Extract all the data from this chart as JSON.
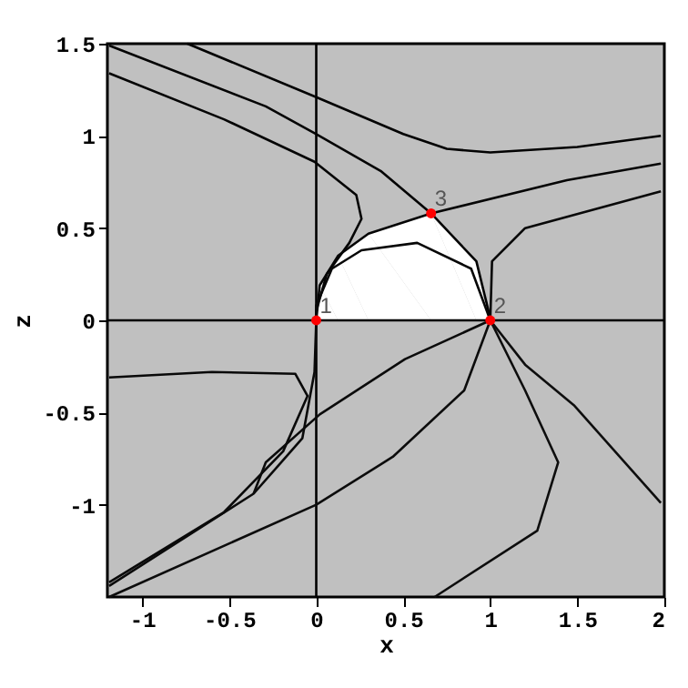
{
  "chart_data": {
    "type": "line",
    "xlabel": "x",
    "ylabel": "z",
    "xlim": [
      -1.2,
      2
    ],
    "ylim": [
      -1.5,
      1.5
    ],
    "xticks": [
      -1,
      -0.5,
      0,
      0.5,
      1,
      1.5,
      2
    ],
    "yticks": [
      -1,
      -0.5,
      0,
      0.5,
      1,
      1.5
    ],
    "grid": false,
    "line_style": "solid",
    "marker": "none",
    "series": [
      {
        "type": "area",
        "color": "#ffffff",
        "x": [
          0,
          0.02,
          0.125,
          0.3,
          0.66,
          0.92,
          0.99,
          1
        ],
        "values": [
          0,
          0.19,
          0.35,
          0.47,
          0.58,
          0.32,
          0.05,
          0
        ]
      },
      {
        "color": "#000000",
        "x": [
          -1.2,
          2
        ],
        "values": [
          0,
          0
        ]
      },
      {
        "color": "#010101",
        "x": [
          0,
          0
        ],
        "values": [
          1.5,
          -1.5
        ]
      },
      {
        "color": "#020202",
        "x": [
          -0.74,
          0,
          0.5,
          0.75,
          1.0,
          1.5,
          1.98
        ],
        "values": [
          1.5,
          1.21,
          1.01,
          0.93,
          0.91,
          0.94,
          1.0
        ]
      },
      {
        "color": "#030303",
        "x": [
          -1.19,
          -0.29,
          0,
          0.37,
          0.66,
          0.92,
          0.99,
          1
        ],
        "values": [
          1.49,
          1.16,
          1.01,
          0.81,
          0.58,
          0.32,
          0.05,
          0
        ]
      },
      {
        "color": "#040404",
        "x": [
          -1.19,
          -0.53,
          -0.01,
          0.23,
          0.26,
          0.19,
          0.06,
          0,
          0
        ],
        "values": [
          1.34,
          1.09,
          0.86,
          0.68,
          0.55,
          0.42,
          0.25,
          0.05,
          0
        ]
      },
      {
        "color": "#050505",
        "x": [
          0,
          0.02,
          0.125,
          0.3,
          0.66,
          1.44,
          1.98
        ],
        "values": [
          0,
          0.19,
          0.35,
          0.47,
          0.58,
          0.76,
          0.85
        ]
      },
      {
        "color": "#070707",
        "x": [
          0,
          0,
          0.09,
          0.26,
          0.58,
          0.89,
          1
        ],
        "values": [
          0,
          0.08,
          0.28,
          0.38,
          0.42,
          0.28,
          0
        ]
      },
      {
        "color": "#080808",
        "x": [
          1,
          1.01,
          1.2,
          1.98
        ],
        "values": [
          0,
          0.32,
          0.5,
          0.7
        ]
      },
      {
        "color": "#090909",
        "x": [
          -1.19,
          -0.6,
          -0.12,
          -0.05,
          -0.19,
          -0.53,
          -1.19
        ],
        "values": [
          -0.31,
          -0.28,
          -0.29,
          -0.41,
          -0.71,
          -1.04,
          -1.42
        ]
      },
      {
        "color": "#0a0a0a",
        "x": [
          -1.19,
          -0.36,
          -0.08,
          -0.01,
          0
        ],
        "values": [
          -1.44,
          -0.94,
          -0.64,
          -0.28,
          0
        ]
      },
      {
        "color": "#0b0b0b",
        "x": [
          -0.36,
          -0.29,
          0.02,
          0.51,
          1
        ],
        "values": [
          -0.94,
          -0.77,
          -0.51,
          -0.21,
          0
        ]
      },
      {
        "color": "#0c0c0c",
        "x": [
          -1.19,
          0,
          0.44,
          0.85,
          1
        ],
        "values": [
          -1.5,
          -1.0,
          -0.74,
          -0.38,
          0
        ]
      },
      {
        "color": "#0d0d0d",
        "x": [
          1,
          1.2,
          1.39,
          1.27,
          0.68
        ],
        "values": [
          0,
          -0.38,
          -0.77,
          -1.14,
          -1.5
        ]
      },
      {
        "color": "#0e0e0e",
        "x": [
          1,
          1.2,
          1.48,
          1.98
        ],
        "values": [
          0,
          -0.24,
          -0.46,
          -0.99
        ]
      },
      {
        "type": "scatter",
        "marker": "circle",
        "color": "#ff0000",
        "x": [
          0,
          1,
          0.66
        ],
        "values": [
          0,
          0,
          0.58
        ]
      }
    ],
    "annotations": [
      {
        "text": "1",
        "x": 0,
        "y": 0
      },
      {
        "text": "2",
        "x": 1,
        "y": 0
      },
      {
        "text": "3",
        "x": 0.66,
        "y": 0.58
      }
    ]
  }
}
